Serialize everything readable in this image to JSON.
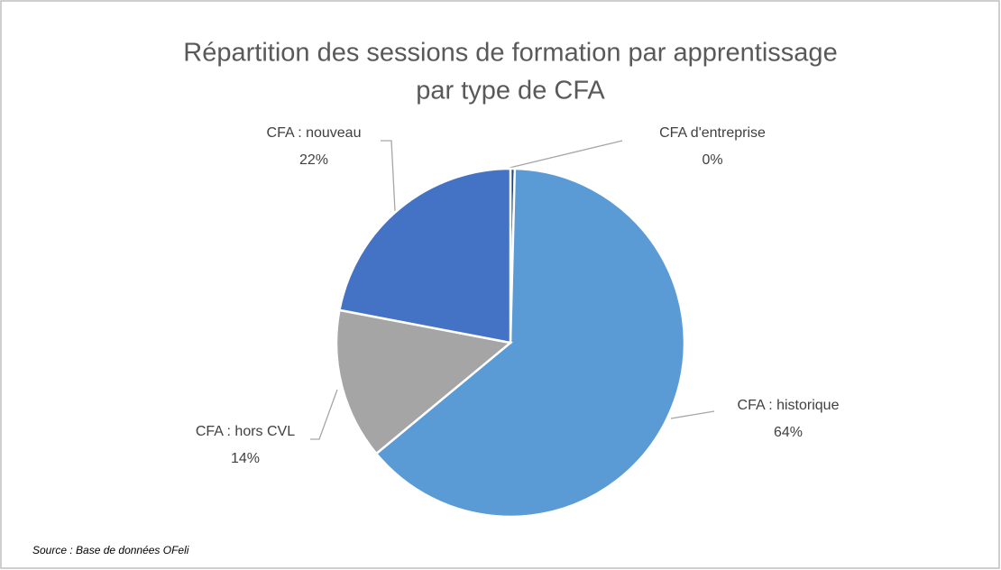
{
  "chart_data": {
    "type": "pie",
    "title": "Répartition des sessions de formation par apprentissage",
    "subtitle": "par type de CFA",
    "categories": [
      "CFA d'entreprise",
      "CFA : historique",
      "CFA : hors CVL",
      "CFA : nouveau"
    ],
    "values": [
      0.4,
      63.6,
      14,
      22
    ],
    "value_labels": [
      "0%",
      "64%",
      "14%",
      "22%"
    ],
    "colors": [
      "#264478",
      "#5b9bd5",
      "#a5a5a5",
      "#4472c4"
    ],
    "source": "Source : Base de données OFeli"
  }
}
